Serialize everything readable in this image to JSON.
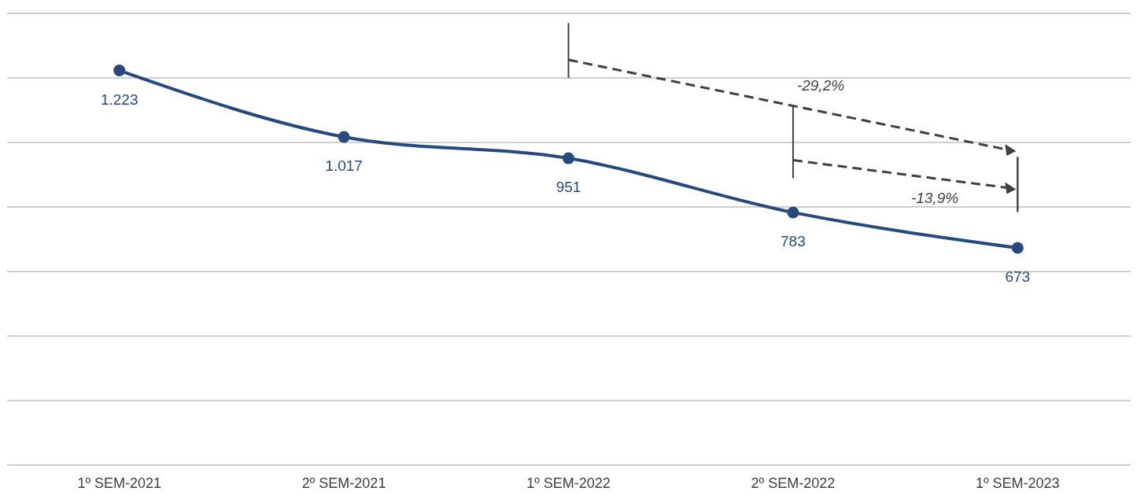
{
  "chart_data": {
    "type": "line",
    "categories": [
      "1º SEM-2021",
      "2º SEM-2021",
      "1º SEM-2022",
      "2º SEM-2022",
      "1º SEM-2023"
    ],
    "series": [
      {
        "color": "#264a7e",
        "values": [
          1223,
          1017,
          951,
          783,
          673
        ],
        "value_labels": [
          "1.223",
          "1.017",
          "951",
          "783",
          "673"
        ]
      }
    ],
    "ylim": [
      0,
      1400
    ],
    "yticks": [
      {
        "value": 0,
        "label": null
      },
      {
        "value": 200,
        "label": null
      },
      {
        "value": 400,
        "label": null
      },
      {
        "value": 600,
        "label": null
      },
      {
        "value": 800,
        "label": null
      },
      {
        "value": 1000,
        "label": null
      },
      {
        "value": 1200,
        "label": null
      },
      {
        "value": 1400,
        "label": null
      }
    ],
    "grid": "y",
    "tick_labels": "x",
    "marker": "circle",
    "line_style": "solid",
    "annotations": [
      "-29,2%",
      "-13,9%"
    ]
  }
}
